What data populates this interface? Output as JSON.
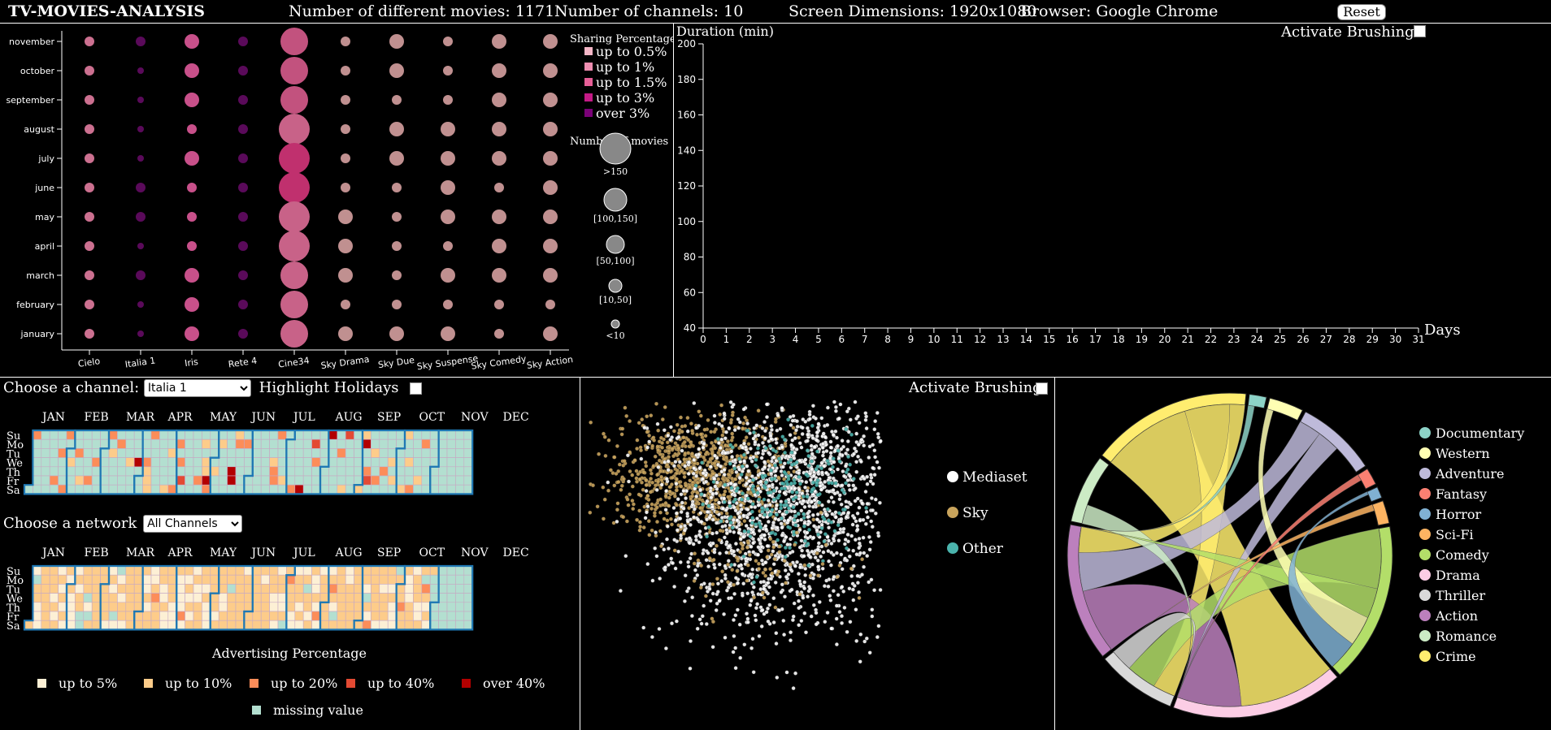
{
  "header": {
    "title": "TV-MOVIES-ANALYSIS",
    "movies": "Number of different movies: 1171",
    "channels": "Number of channels: 10",
    "screen": "Screen Dimensions: 1920x1080",
    "browser": "Browser: Google Chrome",
    "reset_label": "Reset"
  },
  "bubble": {
    "months": [
      "november",
      "october",
      "september",
      "august",
      "july",
      "june",
      "may",
      "april",
      "march",
      "february",
      "january"
    ],
    "channels": [
      "Cielo",
      "Italia 1",
      "Iris",
      "Rete 4",
      "Cine34",
      "Sky Drama",
      "Sky Due",
      "Sky Suspense",
      "Sky Comedy",
      "Sky Action"
    ],
    "cells": [
      [
        1,
        3,
        2,
        3,
        4,
        1,
        2,
        1,
        2,
        2
      ],
      [
        1,
        4,
        2,
        3,
        4,
        1,
        2,
        1,
        2,
        2
      ],
      [
        1,
        4,
        2,
        3,
        4,
        1,
        1,
        1,
        2,
        2
      ],
      [
        1,
        4,
        1,
        3,
        4,
        1,
        2,
        2,
        2,
        2
      ],
      [
        1,
        4,
        2,
        3,
        4,
        1,
        2,
        2,
        2,
        2
      ],
      [
        1,
        3,
        1,
        3,
        4,
        1,
        1,
        2,
        1,
        2
      ],
      [
        1,
        3,
        1,
        3,
        4,
        2,
        1,
        2,
        2,
        2
      ],
      [
        1,
        4,
        1,
        3,
        4,
        2,
        1,
        1,
        2,
        2
      ],
      [
        1,
        3,
        2,
        3,
        4,
        2,
        1,
        2,
        2,
        2
      ],
      [
        1,
        4,
        2,
        3,
        4,
        1,
        1,
        1,
        1,
        1
      ],
      [
        1,
        4,
        2,
        3,
        4,
        2,
        2,
        2,
        1,
        2
      ]
    ],
    "shade": [
      [
        3,
        4,
        2,
        4,
        1,
        0,
        0,
        0,
        0,
        0
      ],
      [
        2,
        4,
        2,
        4,
        1,
        0,
        0,
        0,
        0,
        0
      ],
      [
        2,
        4,
        2,
        4,
        2,
        0,
        0,
        0,
        0,
        0
      ],
      [
        2,
        4,
        2,
        4,
        2,
        0,
        0,
        0,
        0,
        0
      ],
      [
        2,
        4,
        2,
        4,
        2,
        0,
        0,
        0,
        0,
        0
      ],
      [
        2,
        4,
        2,
        4,
        2,
        0,
        0,
        0,
        0,
        0
      ],
      [
        2,
        4,
        2,
        4,
        1,
        0,
        0,
        0,
        0,
        0
      ],
      [
        2,
        4,
        2,
        4,
        1,
        0,
        0,
        0,
        0,
        0
      ],
      [
        2,
        4,
        2,
        4,
        1,
        0,
        0,
        0,
        0,
        0
      ],
      [
        2,
        4,
        2,
        4,
        1,
        0,
        0,
        0,
        0,
        0
      ],
      [
        2,
        4,
        2,
        4,
        1,
        0,
        0,
        0,
        0,
        0
      ]
    ],
    "legend_title": "Sharing Percentage",
    "legend": [
      {
        "label": "up to 0.5%",
        "color": "#f4b6c6"
      },
      {
        "label": "up to 1%",
        "color": "#ee8db0"
      },
      {
        "label": "up to 1.5%",
        "color": "#e65f97"
      },
      {
        "label": "up to 3%",
        "color": "#c41a86"
      },
      {
        "label": "over 3%",
        "color": "#7a0177"
      }
    ],
    "size_title": "Number of movies",
    "size_legend": [
      ">150",
      "[100,150]",
      "[50,100]",
      "[10,50]",
      "<10"
    ]
  },
  "line": {
    "ylabel": "Duration (min)",
    "xlabel": "Days",
    "yticks": [
      "40",
      "60",
      "80",
      "100",
      "120",
      "140",
      "160",
      "180",
      "200"
    ],
    "xticks": [
      "0",
      "1",
      "2",
      "3",
      "4",
      "5",
      "6",
      "7",
      "8",
      "9",
      "10",
      "11",
      "12",
      "13",
      "14",
      "15",
      "16",
      "17",
      "18",
      "19",
      "20",
      "21",
      "22",
      "23",
      "24",
      "25",
      "26",
      "27",
      "28",
      "29",
      "30",
      "31"
    ],
    "brush_label": "Activate Brushing"
  },
  "calendar": {
    "channel_label": "Choose a channel:",
    "channel_value": "Italia 1",
    "holidays_label": "Highlight Holidays",
    "network_label": "Choose a network",
    "network_value": "All Channels",
    "months": [
      "JAN",
      "FEB",
      "MAR",
      "APR",
      "MAY",
      "JUN",
      "JUL",
      "AUG",
      "SEP",
      "OCT",
      "NOV",
      "DEC"
    ],
    "days": [
      "Su",
      "Mo",
      "Tu",
      "We",
      "Th",
      "Fr",
      "Sa"
    ],
    "adv_title": "Advertising Percentage",
    "legend": [
      {
        "label": "up to 5%",
        "color": "#fdf0d5"
      },
      {
        "label": "up to 10%",
        "color": "#fdcc8a"
      },
      {
        "label": "up to 20%",
        "color": "#fc8d59"
      },
      {
        "label": "up to 40%",
        "color": "#e34a33"
      },
      {
        "label": "over 40%",
        "color": "#b30000"
      },
      {
        "label": "missing value",
        "color": "#b3dfd0"
      }
    ]
  },
  "scatter": {
    "brush_label": "Activate Brushing",
    "legend": [
      {
        "label": "Mediaset",
        "color": "#ffffff"
      },
      {
        "label": "Sky",
        "color": "#c9a45c"
      },
      {
        "label": "Other",
        "color": "#4ab3ac"
      }
    ]
  },
  "chord": {
    "genres": [
      {
        "label": "Documentary",
        "color": "#8dd3c7"
      },
      {
        "label": "Western",
        "color": "#ffffb3"
      },
      {
        "label": "Adventure",
        "color": "#bebada"
      },
      {
        "label": "Fantasy",
        "color": "#fb8072"
      },
      {
        "label": "Horror",
        "color": "#80b1d3"
      },
      {
        "label": "Sci-Fi",
        "color": "#fdb462"
      },
      {
        "label": "Comedy",
        "color": "#b3de69"
      },
      {
        "label": "Drama",
        "color": "#fccde5"
      },
      {
        "label": "Thriller",
        "color": "#d9d9d9"
      },
      {
        "label": "Action",
        "color": "#bc80bd"
      },
      {
        "label": "Romance",
        "color": "#ccebc5"
      },
      {
        "label": "Crime",
        "color": "#ffed6f"
      }
    ]
  }
}
